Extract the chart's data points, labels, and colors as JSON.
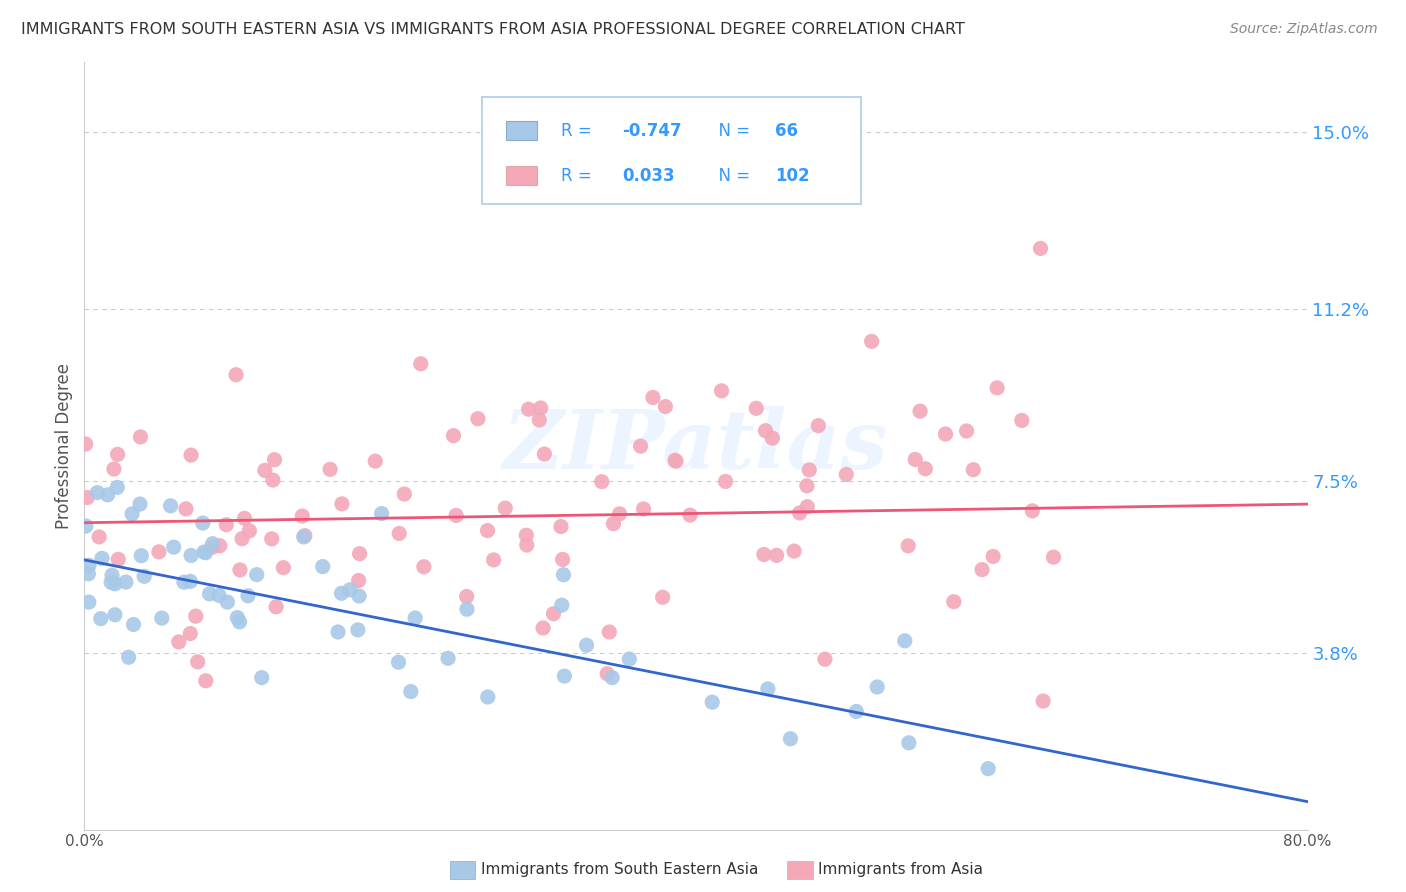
{
  "title": "IMMIGRANTS FROM SOUTH EASTERN ASIA VS IMMIGRANTS FROM ASIA PROFESSIONAL DEGREE CORRELATION CHART",
  "source": "Source: ZipAtlas.com",
  "ylabel": "Professional Degree",
  "series1_label": "Immigrants from South Eastern Asia",
  "series2_label": "Immigrants from Asia",
  "series1_color": "#a8c8e8",
  "series2_color": "#f4a8b8",
  "series1_R": -0.747,
  "series1_N": 66,
  "series2_R": 0.033,
  "series2_N": 102,
  "xlim": [
    0.0,
    0.8
  ],
  "ylim": [
    0.0,
    0.165
  ],
  "yticks": [
    0.038,
    0.075,
    0.112,
    0.15
  ],
  "ytick_labels": [
    "3.8%",
    "7.5%",
    "11.2%",
    "15.0%"
  ],
  "xtick_labels": [
    "0.0%",
    "80.0%"
  ],
  "watermark": "ZIPatlas",
  "background_color": "#ffffff",
  "grid_color": "#cccccc",
  "trend1_color": "#3366cc",
  "trend2_color": "#ee5577",
  "legend_color": "#3399ff",
  "legend_text_color": "#3399ff"
}
